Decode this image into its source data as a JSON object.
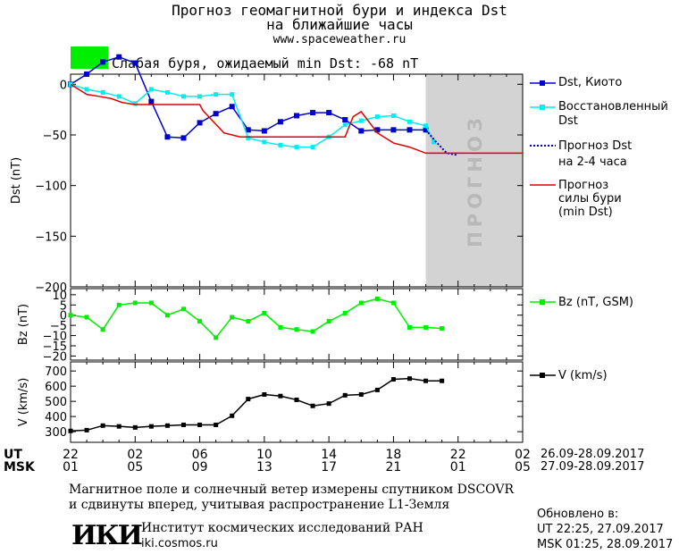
{
  "header": {
    "title_line1": "Прогноз геомагнитной бури и индекса Dst",
    "title_line2": "на ближайшие часы",
    "site": "www.spaceweather.ru",
    "status_color": "#00ee00",
    "status_text": "Слабая буря, ожидаемый min Dst: -68 nT"
  },
  "legend": {
    "dst_kyoto": "Dst, Киото",
    "restored_1": "Восстановленный",
    "restored_2": "Dst",
    "forecast_dst_1": "Прогноз Dst",
    "forecast_dst_2": "на 2-4 часа",
    "storm_1": "Прогноз",
    "storm_2": "силы бури",
    "storm_3": "(min Dst)",
    "bz": "Bz (nT, GSM)",
    "v": "V (km/s)"
  },
  "forecast_label": "ПРОГНОЗ",
  "time_axis": {
    "ut_label": "UT",
    "msk_label": "MSK",
    "ut_ticks": [
      "22",
      "02",
      "06",
      "10",
      "14",
      "18",
      "22",
      "02"
    ],
    "msk_ticks": [
      "01",
      "05",
      "09",
      "13",
      "17",
      "21",
      "01",
      "05"
    ],
    "ut_range": "26.09-28.09.2017",
    "msk_range": "27.09-28.09.2017"
  },
  "footer": {
    "note_1": "Магнитное поле и солнечный ветер измерены спутником DSCOVR",
    "note_2": "и сдвинуты вперед, учитывая распространение L1-Земля",
    "logo": "ИКИ",
    "institute": "Институт космических исследований РАН",
    "institute_url": "iki.cosmos.ru",
    "updated_label": "Обновлено в:",
    "updated_ut": "UT  22:25, 27.09.2017",
    "updated_msk": "MSK 01:25, 28.09.2017"
  },
  "chart_data": [
    {
      "type": "line",
      "panel": "dst",
      "ylabel": "Dst (nT)",
      "ylim": [
        -200,
        10
      ],
      "yticks": [
        0,
        -50,
        -100,
        -150,
        -200
      ],
      "xlim_hours": [
        0,
        28
      ],
      "forecast_region_hours": [
        22,
        28
      ],
      "series": [
        {
          "name": "Dst, Киото",
          "color": "#0000cc",
          "marker": "square",
          "x": [
            0,
            1,
            2,
            3,
            4,
            5,
            6,
            7,
            8,
            9,
            10,
            11,
            12,
            13,
            14,
            15,
            16,
            17,
            18,
            19,
            20,
            21,
            22
          ],
          "y": [
            0,
            10,
            22,
            27,
            21,
            -17,
            -52,
            -53,
            -38,
            -29,
            -22,
            -45,
            -46,
            -37,
            -31,
            -28,
            -28,
            -35,
            -46,
            -45,
            -45,
            -45,
            -45
          ]
        },
        {
          "name": "Восстановленный Dst",
          "color": "#00eeee",
          "marker": "square",
          "x": [
            0,
            1,
            2,
            3,
            4,
            5,
            6,
            7,
            8,
            9,
            10,
            11,
            12,
            13,
            14,
            15,
            16,
            17,
            18,
            19,
            20,
            21,
            22,
            22.5
          ],
          "y": [
            0,
            -5,
            -8,
            -12,
            -19,
            -5,
            -8,
            -12,
            -12,
            -10,
            -10,
            -53,
            -57,
            -60,
            -62,
            -62,
            -52,
            -40,
            -36,
            -32,
            -31,
            -37,
            -41,
            -57
          ]
        },
        {
          "name": "Прогноз Dst на 2-4 часа",
          "color": "#0000cc",
          "dash": true,
          "x": [
            22,
            22.7,
            23.3,
            24
          ],
          "y": [
            -45,
            -58,
            -68,
            -70
          ]
        },
        {
          "name": "Прогноз силы бури (min Dst)",
          "color": "#dd0000",
          "x": [
            0,
            1,
            1.8,
            2.5,
            3.2,
            4,
            6,
            8,
            8.2,
            9.5,
            10.5,
            15.5,
            16.5,
            17,
            17.5,
            18,
            19,
            20,
            21,
            22,
            28
          ],
          "y": [
            0,
            -10,
            -12,
            -14,
            -18,
            -20,
            -20,
            -20,
            -26,
            -48,
            -52,
            -52,
            -52,
            -52,
            -32,
            -27,
            -48,
            -58,
            -62,
            -68,
            -68
          ]
        }
      ]
    },
    {
      "type": "line",
      "panel": "bz",
      "ylabel": "Bz (nT)",
      "ylim": [
        -22,
        13
      ],
      "yticks": [
        10,
        5,
        0,
        -5,
        -10,
        -15,
        -20
      ],
      "series": [
        {
          "name": "Bz (nT, GSM)",
          "color": "#00ee00",
          "marker": "square",
          "x": [
            0,
            1,
            2,
            3,
            4,
            5,
            6,
            7,
            8,
            9,
            10,
            11,
            12,
            13,
            14,
            15,
            16,
            17,
            18,
            19,
            20,
            21,
            22,
            23
          ],
          "y": [
            0,
            -1,
            -7,
            5,
            6,
            6,
            0,
            3,
            -3,
            -11,
            -1,
            -3,
            1,
            -6,
            -7,
            -8,
            -3,
            1,
            6,
            8,
            6,
            -6,
            -6,
            -6.5
          ]
        }
      ]
    },
    {
      "type": "line",
      "panel": "v",
      "ylabel": "V (km/s)",
      "ylim": [
        230,
        760
      ],
      "yticks": [
        300,
        400,
        500,
        600,
        700
      ],
      "series": [
        {
          "name": "V (km/s)",
          "color": "#000000",
          "marker": "square",
          "x": [
            0,
            1,
            2,
            3,
            4,
            5,
            6,
            7,
            8,
            9,
            10,
            11,
            12,
            13,
            14,
            15,
            16,
            17,
            18,
            19,
            20,
            21,
            22,
            23
          ],
          "y": [
            305,
            310,
            340,
            335,
            328,
            335,
            340,
            345,
            345,
            345,
            405,
            515,
            545,
            535,
            510,
            470,
            485,
            540,
            545,
            575,
            645,
            650,
            635,
            635
          ]
        }
      ]
    }
  ]
}
